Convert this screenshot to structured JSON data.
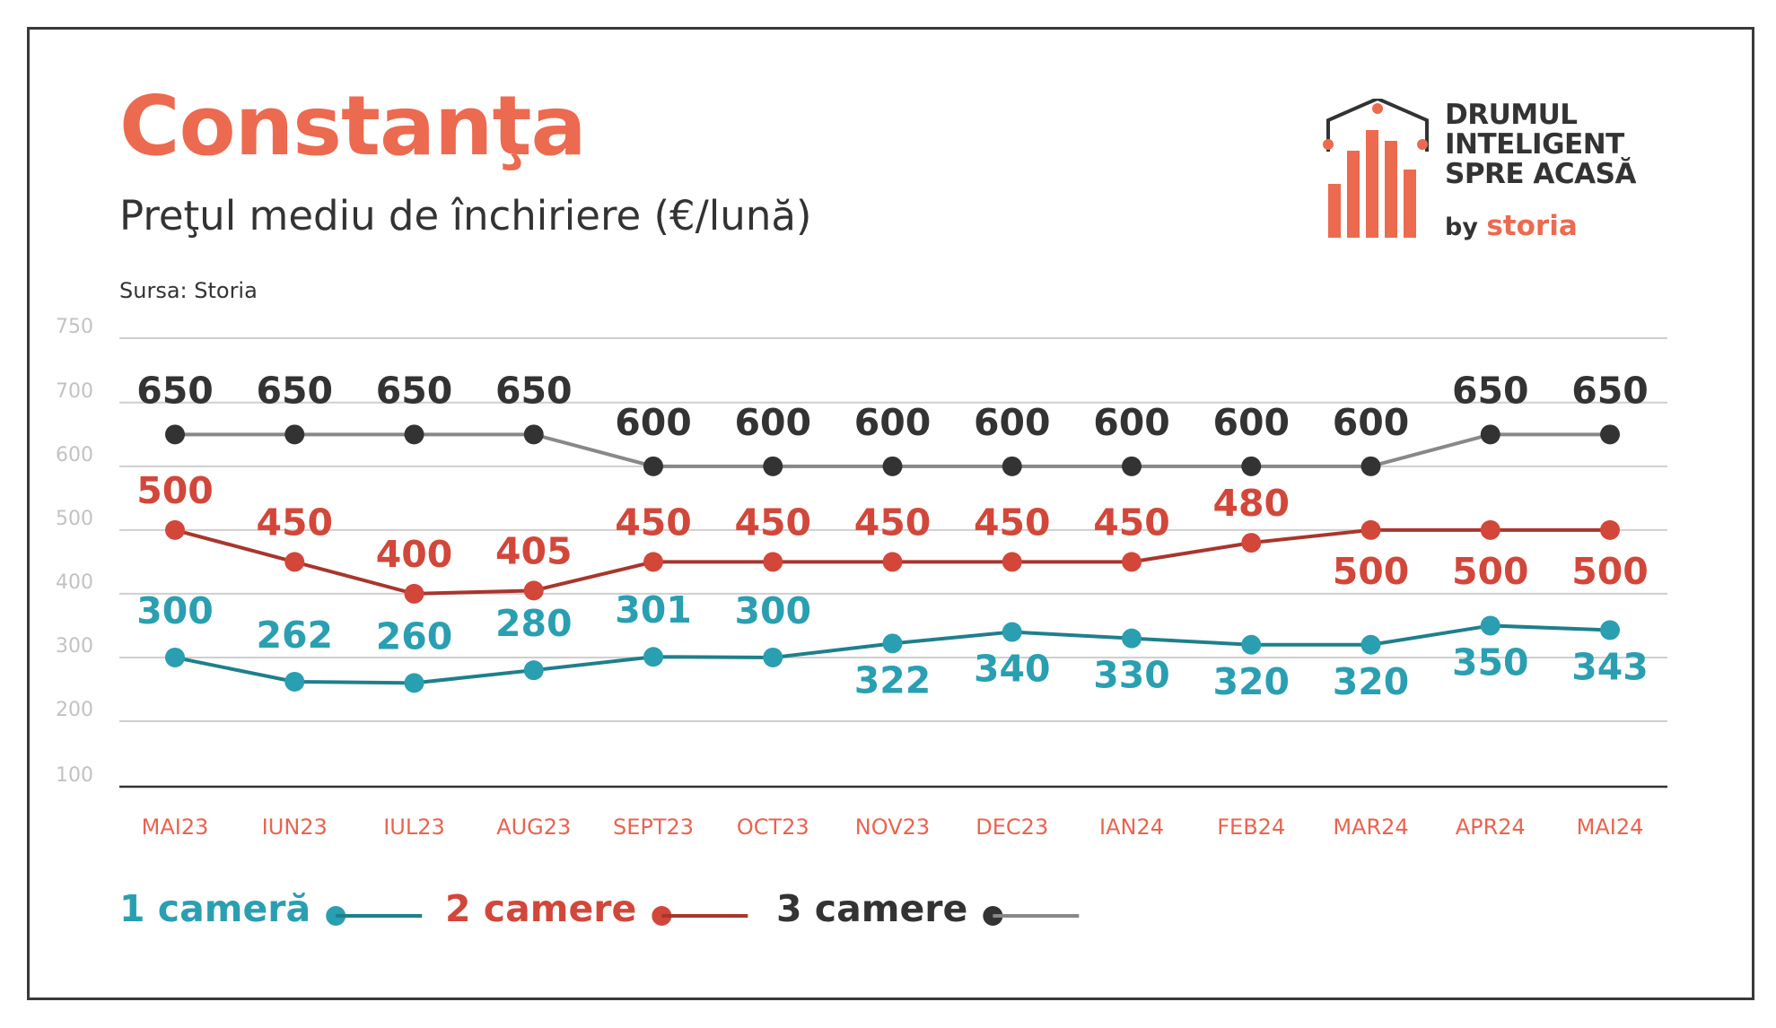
{
  "header": {
    "title": "Constanţa",
    "subtitle": "Preţul mediu de închiriere (€/lună)",
    "source": "Sursa: Storia"
  },
  "logo": {
    "line1": "DRUMUL",
    "line2": "INTELIGENT",
    "line3": "SPRE ACASĂ",
    "by": "by",
    "brand": "storia"
  },
  "colors": {
    "title": "#ec6a50",
    "series_1": "#2a9fb1",
    "series_1_line": "#1f7f8c",
    "series_2": "#d2473a",
    "series_2_line": "#a8362d",
    "series_3": "#333333",
    "series_3_line": "#888888",
    "category": "#e86450",
    "grid": "#cfcfcf",
    "ytick": "#c2c2c2"
  },
  "chart_data": {
    "type": "line",
    "categories": [
      "MAI23",
      "IUN23",
      "IUL23",
      "AUG23",
      "SEPT23",
      "OCT23",
      "NOV23",
      "DEC23",
      "IAN24",
      "FEB24",
      "MAR24",
      "APR24",
      "MAI24"
    ],
    "yticks": [
      750,
      700,
      600,
      500,
      400,
      300,
      200,
      100
    ],
    "series": [
      {
        "name": "1 cameră",
        "values": [
          300,
          262,
          260,
          280,
          301,
          300,
          322,
          340,
          330,
          320,
          320,
          350,
          343
        ]
      },
      {
        "name": "2 camere",
        "values": [
          500,
          450,
          400,
          405,
          450,
          450,
          450,
          450,
          450,
          480,
          500,
          500,
          500
        ]
      },
      {
        "name": "3 camere",
        "values": [
          650,
          650,
          650,
          650,
          600,
          600,
          600,
          600,
          600,
          600,
          600,
          650,
          650
        ]
      }
    ],
    "grid": true,
    "legend": "bottom-left"
  }
}
